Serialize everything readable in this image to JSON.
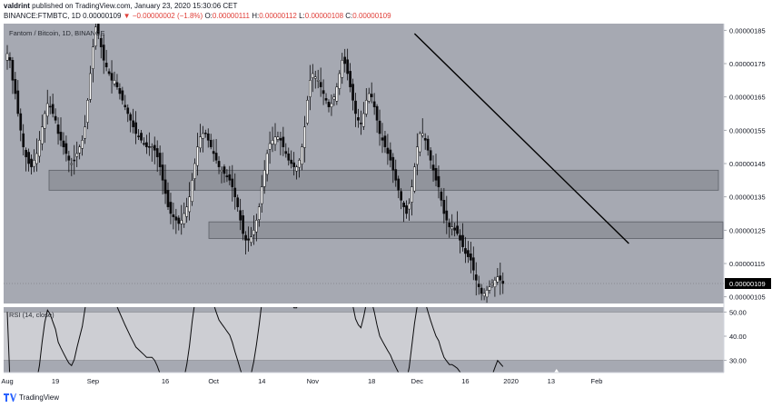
{
  "header": {
    "author": "valdrint",
    "published_text": "published on TradingView.com, January 23, 2020 15:30:06 CET",
    "symbol": "BINANCE:FTMBTC, 1D",
    "last": "0.00000109",
    "change": "−0.00000002 (−1.8%)",
    "ohlc": [
      {
        "k": "O:",
        "v": "0.00000111"
      },
      {
        "k": "H:",
        "v": "0.00000112"
      },
      {
        "k": "L:",
        "v": "0.00000108"
      },
      {
        "k": "C:",
        "v": "0.00000109"
      }
    ]
  },
  "chart_data": {
    "type": "candlestick",
    "title": "Fantom / Bitcoin, 1D, BINANCE",
    "y_axis": {
      "ticks": [
        "0.00000185",
        "0.00000175",
        "0.00000165",
        "0.00000155",
        "0.00000145",
        "0.00000135",
        "0.00000125",
        "0.00000115",
        "0.00000105"
      ],
      "tick_values": [
        185,
        175,
        165,
        155,
        145,
        135,
        125,
        115,
        105
      ],
      "unit_scale": 1e-08,
      "range": [
        103,
        187
      ],
      "last_price_label": "0.00000109",
      "last_price": 109
    },
    "x_axis": {
      "labels": [
        "Aug",
        "19",
        "Sep",
        "16",
        "Oct",
        "14",
        "Nov",
        "18",
        "Dec",
        "16",
        "2020",
        "13",
        "Feb"
      ],
      "label_bar_index": [
        0,
        18,
        32,
        59,
        77,
        95,
        114,
        136,
        153,
        171,
        188,
        203,
        220
      ]
    },
    "candle_closes": [
      178,
      176,
      170,
      166,
      160,
      155,
      150,
      147,
      145,
      144,
      146,
      148,
      152,
      156,
      160,
      163,
      162,
      160,
      158,
      154,
      152,
      150,
      148,
      146,
      145,
      146,
      148,
      150,
      152,
      156,
      164,
      172,
      180,
      186,
      184,
      180,
      176,
      174,
      172,
      170,
      170,
      168,
      166,
      164,
      162,
      160,
      158,
      156,
      154,
      153,
      152,
      151,
      150,
      150,
      150,
      149,
      147,
      144,
      140,
      136,
      132,
      130,
      129,
      128,
      127,
      128,
      130,
      132,
      135,
      140,
      145,
      150,
      153,
      154,
      154,
      152,
      150,
      148,
      146,
      144,
      143,
      142,
      141,
      140,
      138,
      135,
      132,
      128,
      124,
      122,
      122,
      123,
      125,
      128,
      132,
      138,
      143,
      148,
      151,
      152,
      153,
      153,
      152,
      150,
      148,
      146,
      145,
      144,
      144,
      146,
      150,
      156,
      164,
      170,
      172,
      171,
      170,
      168,
      166,
      164,
      162,
      163,
      165,
      168,
      172,
      176,
      175,
      172,
      168,
      164,
      160,
      158,
      157,
      160,
      164,
      166,
      165,
      162,
      158,
      154,
      152,
      150,
      148,
      146,
      143,
      140,
      137,
      134,
      132,
      130,
      133,
      138,
      144,
      150,
      154,
      154,
      152,
      149,
      146,
      143,
      140,
      138,
      134,
      130,
      128,
      126,
      126,
      125,
      124,
      122,
      120,
      118,
      117,
      116,
      113,
      110,
      108,
      106,
      106,
      107,
      108,
      109,
      110,
      111,
      110,
      109
    ],
    "rsi": {
      "label": "RSI (14, close)",
      "ticks": [
        "50.00",
        "40.00",
        "30.00"
      ],
      "tick_values": [
        50,
        40,
        30
      ],
      "range": [
        25,
        52
      ],
      "bands": [
        30,
        50
      ]
    },
    "support_zones": [
      {
        "from": 137,
        "to": 143
      },
      {
        "from": 122.5,
        "to": 127.5
      }
    ],
    "trendline": {
      "from_index": 152,
      "from_price": 184,
      "to_index": 232,
      "to_price": 121
    },
    "rsi_marker": {
      "index": 205,
      "type": "triangle-up"
    }
  },
  "footer": {
    "brand": "TradingView"
  },
  "colors": {
    "panel_bg": "#a6a9b2",
    "band_bg": "#cdced3",
    "zone_fill": "#8d9098",
    "up_body": "#ffffff",
    "down_body": "#0b0b0d",
    "line": "#000000",
    "tag_bg": "#000000"
  }
}
